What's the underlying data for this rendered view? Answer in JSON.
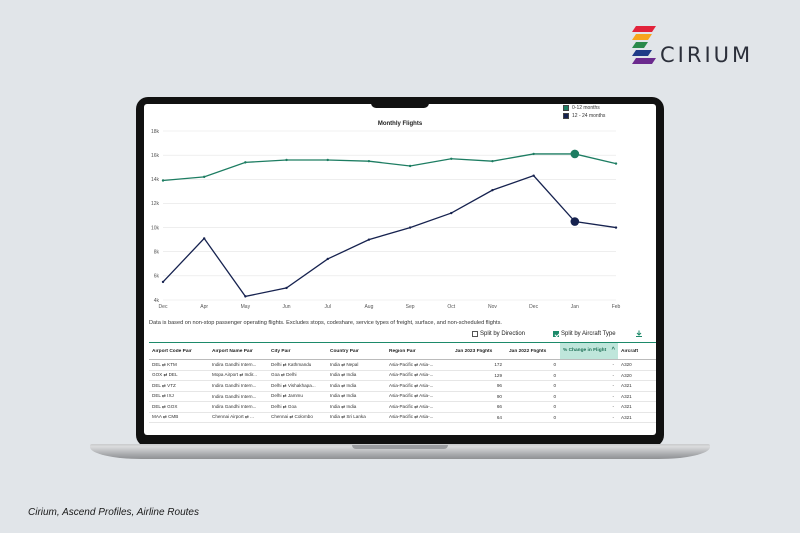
{
  "brand": {
    "name": "CIRIUM"
  },
  "caption": "Cirium, Ascend Profiles, Airline Routes",
  "legend": [
    {
      "label": "0-12 months",
      "color": "#1d7d62"
    },
    {
      "label": "12 - 24 months",
      "color": "#16224f"
    }
  ],
  "chart_data": {
    "type": "line",
    "title": "Monthly Flights",
    "categories": [
      "Dec",
      "Apr",
      "May",
      "Jun",
      "Jul",
      "Aug",
      "Sep",
      "Oct",
      "Nov",
      "Dec",
      "Jan",
      "Feb"
    ],
    "y_ticks": [
      "4k",
      "6k",
      "8k",
      "10k",
      "12k",
      "14k",
      "16k",
      "18k"
    ],
    "ylim": [
      4000,
      18000
    ],
    "series": [
      {
        "name": "0-12 months",
        "color": "#1d7d62",
        "values": [
          13900,
          14200,
          15400,
          15600,
          15600,
          15500,
          15100,
          15700,
          15500,
          16100,
          16100,
          15300
        ],
        "highlight": 10
      },
      {
        "name": "12 - 24 months",
        "color": "#16224f",
        "values": [
          5500,
          9100,
          4300,
          5000,
          7400,
          9000,
          10000,
          11200,
          13100,
          14300,
          10500,
          10000
        ],
        "highlight": 10
      }
    ],
    "grid": true
  },
  "note": "Data is based on non-stop passenger operating flights. Excludes stops, codeshare, service types of freight, surface, and non-scheduled flights.",
  "options": {
    "split_direction": "Split by Direction",
    "split_aircraft": "Split by Aircraft Type"
  },
  "table": {
    "headers": [
      "Airport Code Pair",
      "Airport Name Pair",
      "City Pair",
      "Country Pair",
      "Region Pair",
      "Jan 2023 Flights",
      "Jan 2022 Flights",
      "% Change in Flight",
      "Aircraft"
    ],
    "rows": [
      [
        "DEL ⇄ KTM",
        "Indira Gandhi Intern...",
        "Delhi ⇄ Kathmandu",
        "India ⇄ Nepal",
        "Asia-Pacific ⇄ Asia-...",
        "172",
        "0",
        "-",
        "A320"
      ],
      [
        "GOX ⇄ DEL",
        "Mopa Airport ⇄ Indir...",
        "Goa ⇄ Delhi",
        "India ⇄ India",
        "Asia-Pacific ⇄ Asia-...",
        "129",
        "0",
        "-",
        "A320"
      ],
      [
        "DEL ⇄ VTZ",
        "Indira Gandhi Intern...",
        "Delhi ⇄ Vishakhapa...",
        "India ⇄ India",
        "Asia-Pacific ⇄ Asia-...",
        "96",
        "0",
        "-",
        "A321"
      ],
      [
        "DEL ⇄ IXJ",
        "Indira Gandhi Intern...",
        "Delhi ⇄ Jammu",
        "India ⇄ India",
        "Asia-Pacific ⇄ Asia-...",
        "90",
        "0",
        "-",
        "A321"
      ],
      [
        "DEL ⇄ GOX",
        "Indira Gandhi Intern...",
        "Delhi ⇄ Goa",
        "India ⇄ India",
        "Asia-Pacific ⇄ Asia-...",
        "66",
        "0",
        "-",
        "A321"
      ],
      [
        "MAA ⇄ CMB",
        "Chennai Airport ⇄ ...",
        "Chennai ⇄ Colombo",
        "India ⇄ Sri Lanka",
        "Asia-Pacific ⇄ Asia-...",
        "64",
        "0",
        "-",
        "A321"
      ]
    ]
  }
}
